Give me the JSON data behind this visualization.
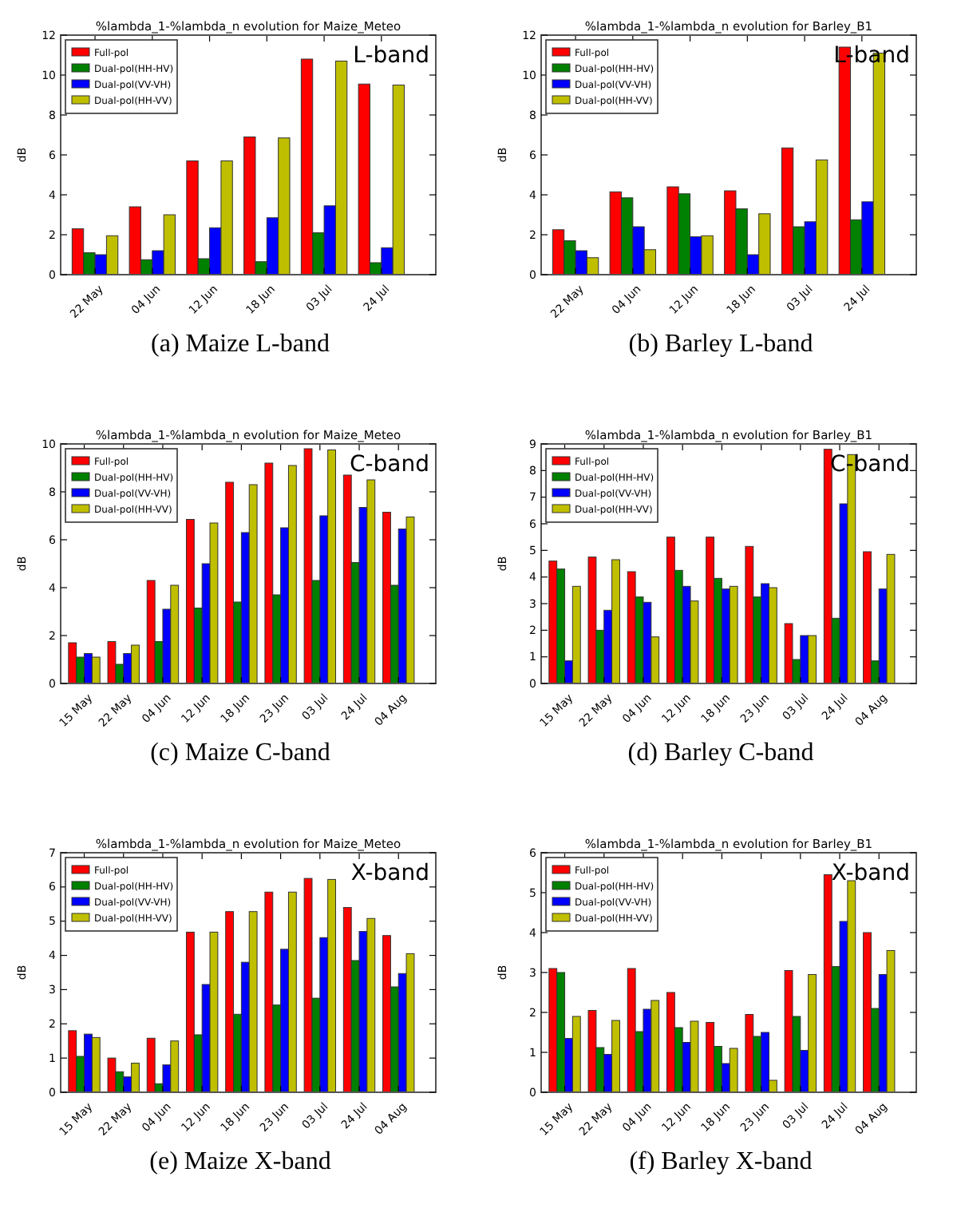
{
  "chart_data": [
    {
      "type": "bar",
      "title": "%lambda_1-%lambda_n evolution for Maize_Meteo",
      "ylabel": "dB",
      "annotations": [
        "L-band",
        "(a) Maize L-band"
      ],
      "categories": [
        "22 May",
        "04 Jun",
        "12 Jun",
        "18 Jun",
        "03 Jul",
        "24 Jul"
      ],
      "ylim": [
        0,
        12
      ],
      "yticks": [
        0,
        2,
        4,
        6,
        8,
        10,
        12
      ],
      "legend": "top left",
      "series": [
        {
          "name": "Full-pol",
          "color": "#ff0000",
          "values": [
            2.3,
            3.4,
            5.7,
            6.9,
            10.8,
            9.55
          ]
        },
        {
          "name": "Dual-pol(HH-HV)",
          "color": "#008000",
          "values": [
            1.1,
            0.75,
            0.8,
            0.65,
            2.1,
            0.6
          ]
        },
        {
          "name": "Dual-pol(VV-VH)",
          "color": "#0000ff",
          "values": [
            1.0,
            1.2,
            2.35,
            2.85,
            3.45,
            1.35
          ]
        },
        {
          "name": "Dual-pol(HH-VV)",
          "color": "#bfbf00",
          "values": [
            1.95,
            3.0,
            5.7,
            6.85,
            10.7,
            9.5
          ]
        }
      ]
    },
    {
      "type": "bar",
      "title": "%lambda_1-%lambda_n evolution for Barley_B1",
      "ylabel": "dB",
      "annotations": [
        "L-band",
        "(b) Barley L-band"
      ],
      "categories": [
        "22 May",
        "04 Jun",
        "12 Jun",
        "18 Jun",
        "03 Jul",
        "24 Jul"
      ],
      "ylim": [
        0,
        12
      ],
      "yticks": [
        0,
        2,
        4,
        6,
        8,
        10,
        12
      ],
      "legend": "top left",
      "series": [
        {
          "name": "Full-pol",
          "color": "#ff0000",
          "values": [
            2.25,
            4.15,
            4.4,
            4.2,
            6.35,
            11.4
          ]
        },
        {
          "name": "Dual-pol(HH-HV)",
          "color": "#008000",
          "values": [
            1.7,
            3.85,
            4.05,
            3.3,
            2.4,
            2.75
          ]
        },
        {
          "name": "Dual-pol(VV-VH)",
          "color": "#0000ff",
          "values": [
            1.2,
            2.4,
            1.9,
            1.0,
            2.65,
            3.65
          ]
        },
        {
          "name": "Dual-pol(HH-VV)",
          "color": "#bfbf00",
          "values": [
            0.85,
            1.25,
            1.95,
            3.05,
            5.75,
            11.1
          ]
        }
      ]
    },
    {
      "type": "bar",
      "title": "%lambda_1-%lambda_n evolution for Maize_Meteo",
      "ylabel": "dB",
      "annotations": [
        "C-band",
        "(c) Maize C-band"
      ],
      "categories": [
        "15 May",
        "22 May",
        "04 Jun",
        "12 Jun",
        "18 Jun",
        "23 Jun",
        "03 Jul",
        "24 Jul",
        "04 Aug"
      ],
      "ylim": [
        0,
        10
      ],
      "yticks": [
        0,
        2,
        4,
        6,
        8,
        10
      ],
      "legend": "top left",
      "series": [
        {
          "name": "Full-pol",
          "color": "#ff0000",
          "values": [
            1.7,
            1.75,
            4.3,
            6.85,
            8.4,
            9.2,
            9.8,
            8.7,
            7.15
          ]
        },
        {
          "name": "Dual-pol(HH-HV)",
          "color": "#008000",
          "values": [
            1.1,
            0.8,
            1.75,
            3.15,
            3.4,
            3.7,
            4.3,
            5.05,
            4.1
          ]
        },
        {
          "name": "Dual-pol(VV-VH)",
          "color": "#0000ff",
          "values": [
            1.25,
            1.25,
            3.1,
            5.0,
            6.3,
            6.5,
            7.0,
            7.35,
            6.45
          ]
        },
        {
          "name": "Dual-pol(HH-VV)",
          "color": "#bfbf00",
          "values": [
            1.1,
            1.6,
            4.1,
            6.7,
            8.3,
            9.1,
            9.75,
            8.5,
            6.95
          ]
        }
      ]
    },
    {
      "type": "bar",
      "title": "%lambda_1-%lambda_n evolution for Barley_B1",
      "ylabel": "dB",
      "annotations": [
        "C-band",
        "(d) Barley C-band"
      ],
      "categories": [
        "15 May",
        "22 May",
        "04 Jun",
        "12 Jun",
        "18 Jun",
        "23 Jun",
        "03 Jul",
        "24 Jul",
        "04 Aug"
      ],
      "ylim": [
        0,
        9
      ],
      "yticks": [
        0,
        1,
        2,
        3,
        4,
        5,
        6,
        7,
        8,
        9
      ],
      "legend": "top left",
      "series": [
        {
          "name": "Full-pol",
          "color": "#ff0000",
          "values": [
            4.6,
            4.75,
            4.2,
            5.5,
            5.5,
            5.15,
            2.25,
            8.8,
            4.95
          ]
        },
        {
          "name": "Dual-pol(HH-HV)",
          "color": "#008000",
          "values": [
            4.3,
            2.0,
            3.25,
            4.25,
            3.95,
            3.25,
            0.9,
            2.45,
            0.85
          ]
        },
        {
          "name": "Dual-pol(VV-VH)",
          "color": "#0000ff",
          "values": [
            0.85,
            2.75,
            3.05,
            3.65,
            3.55,
            3.75,
            1.8,
            6.75,
            3.55
          ]
        },
        {
          "name": "Dual-pol(HH-VV)",
          "color": "#bfbf00",
          "values": [
            3.65,
            4.65,
            1.75,
            3.1,
            3.65,
            3.6,
            1.8,
            8.6,
            4.85
          ]
        }
      ]
    },
    {
      "type": "bar",
      "title": "%lambda_1-%lambda_n evolution for Maize_Meteo",
      "ylabel": "dB",
      "annotations": [
        "X-band",
        "(e) Maize X-band"
      ],
      "categories": [
        "15 May",
        "22 May",
        "04 Jun",
        "12 Jun",
        "18 Jun",
        "23 Jun",
        "03 Jul",
        "24 Jul",
        "04 Aug"
      ],
      "ylim": [
        0,
        7
      ],
      "yticks": [
        0,
        1,
        2,
        3,
        4,
        5,
        6,
        7
      ],
      "legend": "top left",
      "series": [
        {
          "name": "Full-pol",
          "color": "#ff0000",
          "values": [
            1.8,
            1.0,
            1.58,
            4.68,
            5.28,
            5.85,
            6.25,
            5.4,
            4.58
          ]
        },
        {
          "name": "Dual-pol(HH-HV)",
          "color": "#008000",
          "values": [
            1.05,
            0.6,
            0.25,
            1.68,
            2.28,
            2.55,
            2.75,
            3.85,
            3.08
          ]
        },
        {
          "name": "Dual-pol(VV-VH)",
          "color": "#0000ff",
          "values": [
            1.7,
            0.45,
            0.8,
            3.15,
            3.8,
            4.18,
            4.52,
            4.7,
            3.47
          ]
        },
        {
          "name": "Dual-pol(HH-VV)",
          "color": "#bfbf00",
          "values": [
            1.6,
            0.85,
            1.5,
            4.68,
            5.28,
            5.85,
            6.22,
            5.08,
            4.05
          ]
        }
      ]
    },
    {
      "type": "bar",
      "title": "%lambda_1-%lambda_n evolution for Barley_B1",
      "ylabel": "dB",
      "annotations": [
        "X-band",
        "(f) Barley X-band"
      ],
      "categories": [
        "15 May",
        "22 May",
        "04 Jun",
        "12 Jun",
        "18 Jun",
        "23 Jun",
        "03 Jul",
        "24 Jul",
        "04 Aug"
      ],
      "ylim": [
        0,
        6
      ],
      "yticks": [
        0,
        1,
        2,
        3,
        4,
        5,
        6
      ],
      "legend": "top left",
      "series": [
        {
          "name": "Full-pol",
          "color": "#ff0000",
          "values": [
            3.1,
            2.05,
            3.1,
            2.5,
            1.75,
            1.95,
            3.05,
            5.45,
            4.0
          ]
        },
        {
          "name": "Dual-pol(HH-HV)",
          "color": "#008000",
          "values": [
            3.0,
            1.12,
            1.52,
            1.62,
            1.15,
            1.4,
            1.9,
            3.15,
            2.1
          ]
        },
        {
          "name": "Dual-pol(VV-VH)",
          "color": "#0000ff",
          "values": [
            1.35,
            0.95,
            2.08,
            1.25,
            0.72,
            1.5,
            1.05,
            4.28,
            2.95
          ]
        },
        {
          "name": "Dual-pol(HH-VV)",
          "color": "#bfbf00",
          "values": [
            1.9,
            1.8,
            2.3,
            1.78,
            1.1,
            0.3,
            2.95,
            5.3,
            3.55
          ]
        }
      ]
    }
  ]
}
